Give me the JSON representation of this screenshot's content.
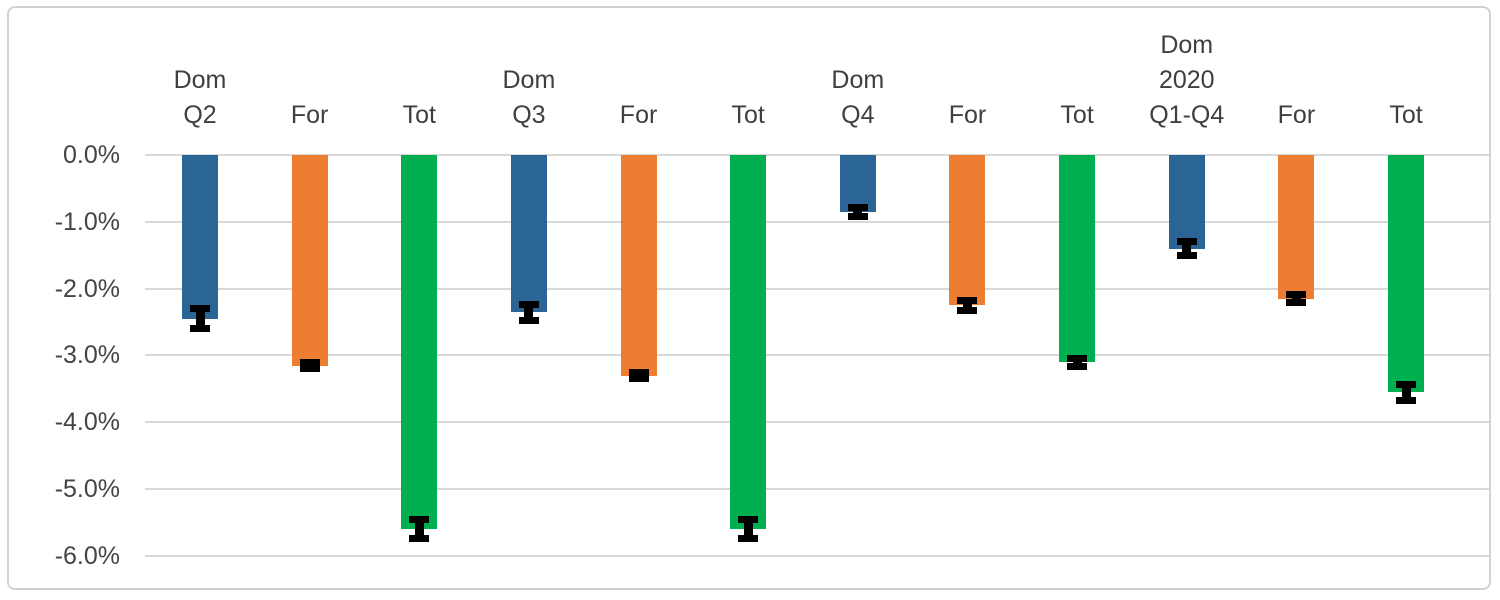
{
  "chart_data": {
    "type": "bar",
    "title": "",
    "xlabel": "",
    "ylabel": "",
    "unit": "%",
    "grid": true,
    "legend": "none",
    "categories": [
      "Dom\nQ2",
      "For",
      "Tot",
      "Dom\nQ3",
      "For",
      "Tot",
      "Dom\nQ4",
      "For",
      "Tot",
      "Dom\n2020\nQ1-Q4",
      "For",
      "Tot"
    ],
    "values": [
      -2.45,
      -3.15,
      -5.6,
      -2.35,
      -3.3,
      -5.6,
      -0.85,
      -2.25,
      -3.1,
      -1.4,
      -2.15,
      -3.55
    ],
    "errors": [
      0.15,
      0.05,
      0.14,
      0.12,
      0.05,
      0.14,
      0.07,
      0.08,
      0.06,
      0.1,
      0.06,
      0.12
    ],
    "bar_colors": [
      "#2a6596",
      "#ed7d31",
      "#00b050",
      "#2a6596",
      "#ed7d31",
      "#00b050",
      "#2a6596",
      "#ed7d31",
      "#00b050",
      "#2a6596",
      "#ed7d31",
      "#00b050"
    ],
    "color_key": {
      "dom": "#2a6596",
      "for": "#ed7d31",
      "tot": "#00b050"
    },
    "error_bar_color": "#000000",
    "yticks": [
      {
        "label": "0.0%",
        "value": 0
      },
      {
        "label": "-1.0%",
        "value": -1
      },
      {
        "label": "-2.0%",
        "value": -2
      },
      {
        "label": "-3.0%",
        "value": -3
      },
      {
        "label": "-4.0%",
        "value": -4
      },
      {
        "label": "-5.0%",
        "value": -5
      },
      {
        "label": "-6.0%",
        "value": -6
      }
    ],
    "ylim": [
      0.0,
      -6.5
    ],
    "gridline_color": "#d9d9d9",
    "text_color": "#3f3f3f"
  }
}
